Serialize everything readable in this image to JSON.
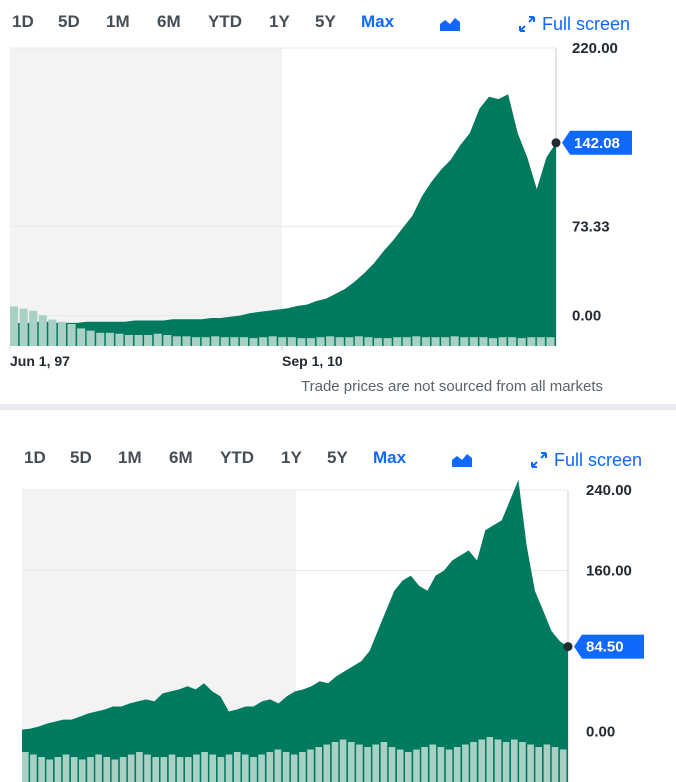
{
  "range_labels": [
    "1D",
    "5D",
    "1M",
    "6M",
    "YTD",
    "1Y",
    "5Y",
    "Max"
  ],
  "active_range": "Max",
  "fullscreen_label": "Full screen",
  "footnote": "Trade prices are not sourced from all markets",
  "colors": {
    "area": "#007a5e",
    "volume": "#a8d0c4",
    "highlight": "#f3f3f3",
    "accent": "#0f69ff",
    "callout": "#0f69ff"
  },
  "icons": {
    "chart_type": "area-chart-icon",
    "fullscreen": "expand-arrows-icon"
  },
  "chart_data": [
    {
      "type": "area",
      "y_ticks": [
        "220.00",
        "73.33",
        "0.00"
      ],
      "ylim": [
        -25,
        220
      ],
      "x_ticks": [
        "Jun 1, 97",
        "Sep 1, 10"
      ],
      "current_value": "142.08",
      "current_y": 142.08,
      "series": [
        {
          "values": [
            -7,
            -6,
            -6,
            -5,
            -5,
            -6,
            -6,
            -6,
            -5,
            -5,
            -5,
            -5,
            -5,
            -4,
            -4,
            -4,
            -4,
            -3,
            -3,
            -3,
            -3,
            -2,
            -2,
            -1,
            0,
            2,
            3,
            4,
            5,
            6,
            8,
            9,
            12,
            14,
            18,
            22,
            28,
            35,
            43,
            53,
            62,
            72,
            82,
            98,
            110,
            120,
            128,
            140,
            150,
            170,
            180,
            178,
            182,
            150,
            130,
            104,
            130,
            142
          ]
        }
      ],
      "volume": [
        0.9,
        0.85,
        0.8,
        0.7,
        0.6,
        0.55,
        0.5,
        0.4,
        0.35,
        0.3,
        0.3,
        0.28,
        0.25,
        0.25,
        0.25,
        0.28,
        0.25,
        0.22,
        0.22,
        0.2,
        0.2,
        0.22,
        0.2,
        0.2,
        0.2,
        0.18,
        0.2,
        0.22,
        0.2,
        0.2,
        0.18,
        0.18,
        0.2,
        0.22,
        0.2,
        0.2,
        0.22,
        0.2,
        0.18,
        0.18,
        0.2,
        0.2,
        0.22,
        0.2,
        0.2,
        0.2,
        0.22,
        0.2,
        0.2,
        0.2,
        0.18,
        0.2,
        0.2,
        0.18,
        0.2,
        0.2,
        0.2
      ]
    },
    {
      "type": "area",
      "y_ticks": [
        "240.00",
        "160.00",
        "0.00"
      ],
      "ylim": [
        -50,
        240
      ],
      "current_value": "84.50",
      "current_y": 84.5,
      "series": [
        {
          "values": [
            2,
            3,
            5,
            8,
            10,
            12,
            12,
            15,
            18,
            20,
            22,
            25,
            25,
            28,
            30,
            32,
            30,
            38,
            40,
            42,
            45,
            42,
            48,
            40,
            35,
            20,
            22,
            25,
            25,
            30,
            32,
            28,
            35,
            40,
            42,
            45,
            50,
            48,
            55,
            60,
            65,
            70,
            80,
            100,
            120,
            140,
            150,
            155,
            145,
            140,
            155,
            160,
            170,
            175,
            180,
            170,
            200,
            205,
            210,
            230,
            250,
            185,
            140,
            120,
            100,
            90,
            84
          ]
        }
      ],
      "volume": [
        0.6,
        0.55,
        0.5,
        0.45,
        0.5,
        0.55,
        0.5,
        0.45,
        0.5,
        0.55,
        0.5,
        0.45,
        0.5,
        0.55,
        0.6,
        0.55,
        0.5,
        0.5,
        0.55,
        0.5,
        0.5,
        0.55,
        0.6,
        0.55,
        0.5,
        0.55,
        0.6,
        0.55,
        0.5,
        0.55,
        0.6,
        0.65,
        0.6,
        0.55,
        0.6,
        0.65,
        0.7,
        0.75,
        0.8,
        0.85,
        0.8,
        0.75,
        0.7,
        0.75,
        0.8,
        0.7,
        0.65,
        0.6,
        0.65,
        0.7,
        0.75,
        0.7,
        0.65,
        0.7,
        0.75,
        0.8,
        0.85,
        0.9,
        0.85,
        0.8,
        0.85,
        0.8,
        0.75,
        0.7,
        0.75,
        0.7,
        0.65
      ]
    }
  ]
}
